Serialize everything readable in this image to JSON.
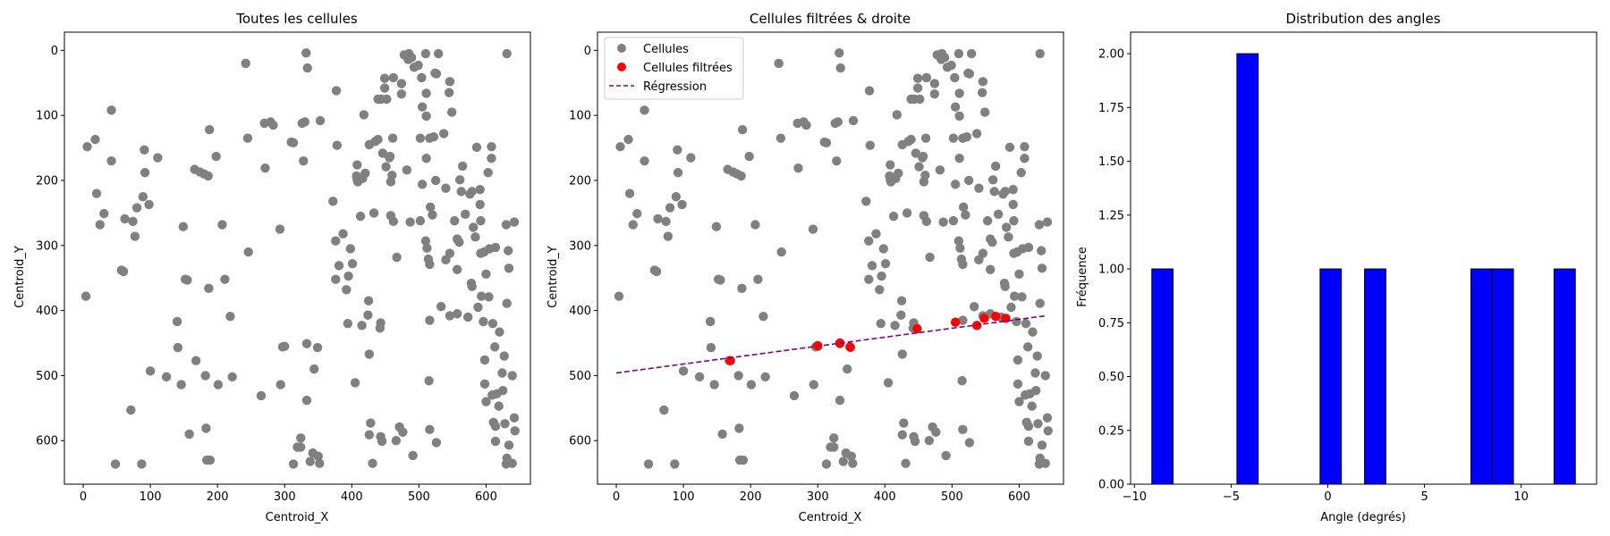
{
  "colors": {
    "cells": "#808080",
    "filtered": "#ff0000",
    "regression": "#800080",
    "bars": "#0000ff",
    "bar_edge": "#000000"
  },
  "chart_data": [
    {
      "type": "scatter",
      "title": "Toutes les cellules",
      "xlabel": "Centroid_X",
      "ylabel": "Centroid_Y",
      "xlim": [
        -28,
        666
      ],
      "ylim": [
        667,
        -28
      ],
      "y_inverted": true,
      "xticks": [
        0,
        100,
        200,
        300,
        400,
        500,
        600
      ],
      "yticks": [
        0,
        100,
        200,
        300,
        400,
        500,
        600
      ],
      "grid": false,
      "series": [
        {
          "points": [
            [
              4,
              378
            ],
            [
              6,
              148
            ],
            [
              18,
              137
            ],
            [
              20,
              220
            ],
            [
              25,
              268
            ],
            [
              31,
              251
            ],
            [
              42,
              92
            ],
            [
              42,
              170
            ],
            [
              48,
              636
            ],
            [
              57,
              338
            ],
            [
              60,
              340
            ],
            [
              62,
              259
            ],
            [
              71,
              553
            ],
            [
              74,
              263
            ],
            [
              77,
              286
            ],
            [
              80,
              242
            ],
            [
              87,
              636
            ],
            [
              89,
              225
            ],
            [
              91,
              153
            ],
            [
              92,
              188
            ],
            [
              98,
              237
            ],
            [
              100,
              493
            ],
            [
              111,
              165
            ],
            [
              124,
              502
            ],
            [
              140,
              417
            ],
            [
              141,
              457
            ],
            [
              146,
              514
            ],
            [
              149,
              271
            ],
            [
              152,
              352
            ],
            [
              155,
              353
            ],
            [
              158,
              590
            ],
            [
              166,
              183
            ],
            [
              168,
              477
            ],
            [
              174,
              187
            ],
            [
              180,
              190
            ],
            [
              182,
              500
            ],
            [
              183,
              581
            ],
            [
              184,
              630
            ],
            [
              186,
              193
            ],
            [
              187,
              366
            ],
            [
              188,
              122
            ],
            [
              189,
              630
            ],
            [
              198,
              163
            ],
            [
              201,
              514
            ],
            [
              207,
              268
            ],
            [
              211,
              352
            ],
            [
              219,
              409
            ],
            [
              222,
              502
            ],
            [
              242,
              20
            ],
            [
              245,
              135
            ],
            [
              246,
              310
            ],
            [
              265,
              531
            ],
            [
              270,
              112
            ],
            [
              271,
              181
            ],
            [
              279,
              110
            ],
            [
              283,
              115
            ],
            [
              293,
              275
            ],
            [
              294,
              514
            ],
            [
              297,
              456
            ],
            [
              300,
              455
            ],
            [
              310,
              141
            ],
            [
              313,
              636
            ],
            [
              313,
              142
            ],
            [
              319,
              610
            ],
            [
              324,
              596
            ],
            [
              324,
              610
            ],
            [
              326,
              112
            ],
            [
              328,
              170
            ],
            [
              330,
              110
            ],
            [
              332,
              4
            ],
            [
              333,
              451
            ],
            [
              333,
              538
            ],
            [
              334,
              27
            ],
            [
              338,
              632
            ],
            [
              342,
              619
            ],
            [
              344,
              490
            ],
            [
              349,
              457
            ],
            [
              350,
              624
            ],
            [
              352,
              635
            ],
            [
              353,
              108
            ],
            [
              372,
              232
            ],
            [
              376,
              293
            ],
            [
              376,
              352
            ],
            [
              377,
              62
            ],
            [
              378,
              146
            ],
            [
              381,
              331
            ],
            [
              387,
              282
            ],
            [
              392,
              368
            ],
            [
              394,
              420
            ],
            [
              395,
              347
            ],
            [
              398,
              305
            ],
            [
              401,
              328
            ],
            [
              405,
              511
            ],
            [
              407,
              193
            ],
            [
              408,
              176
            ],
            [
              408,
              199
            ],
            [
              409,
              202
            ],
            [
              413,
              255
            ],
            [
              415,
              423
            ],
            [
              416,
              197
            ],
            [
              418,
              99
            ],
            [
              420,
              189
            ],
            [
              424,
              407
            ],
            [
              425,
              385
            ],
            [
              426,
              591
            ],
            [
              426,
              467
            ],
            [
              426,
              145
            ],
            [
              428,
              573
            ],
            [
              431,
              635
            ],
            [
              433,
              250
            ],
            [
              435,
              140
            ],
            [
              439,
              137
            ],
            [
              439,
              75
            ],
            [
              442,
              427
            ],
            [
              443,
              594
            ],
            [
              443,
              419
            ],
            [
              444,
              75
            ],
            [
              445,
              601
            ],
            [
              446,
              158
            ],
            [
              449,
              58
            ],
            [
              449,
              43
            ],
            [
              451,
              179
            ],
            [
              452,
              75
            ],
            [
              456,
              165
            ],
            [
              457,
              163
            ],
            [
              458,
              254
            ],
            [
              458,
              202
            ],
            [
              460,
              192
            ],
            [
              461,
              135
            ],
            [
              462,
              263
            ],
            [
              462,
              42
            ],
            [
              466,
              600
            ],
            [
              467,
              318
            ],
            [
              471,
              579
            ],
            [
              474,
              67
            ],
            [
              474,
              51
            ],
            [
              476,
              587
            ],
            [
              478,
              7
            ],
            [
              482,
              184
            ],
            [
              484,
              14
            ],
            [
              485,
              5
            ],
            [
              487,
              264
            ],
            [
              489,
              11
            ],
            [
              491,
              623
            ],
            [
              493,
              26
            ],
            [
              499,
              23
            ],
            [
              502,
              262
            ],
            [
              502,
              135
            ],
            [
              504,
              42
            ],
            [
              505,
              206
            ],
            [
              505,
              87
            ],
            [
              510,
              293
            ],
            [
              510,
              5
            ],
            [
              511,
              66
            ],
            [
              511,
              101
            ],
            [
              511,
              166
            ],
            [
              512,
              304
            ],
            [
              514,
              321
            ],
            [
              515,
              508
            ],
            [
              516,
              583
            ],
            [
              516,
              329
            ],
            [
              516,
              415
            ],
            [
              516,
              135
            ],
            [
              517,
              241
            ],
            [
              520,
              253
            ],
            [
              522,
              133
            ],
            [
              524,
              35
            ],
            [
              525,
              200
            ],
            [
              526,
              603
            ],
            [
              526,
              36
            ],
            [
              529,
              5
            ],
            [
              533,
              394
            ],
            [
              537,
              128
            ],
            [
              540,
              212
            ],
            [
              540,
              322
            ],
            [
              545,
              65
            ],
            [
              546,
              408
            ],
            [
              546,
              312
            ],
            [
              546,
              48
            ],
            [
              549,
              95
            ],
            [
              553,
              262
            ],
            [
              557,
              337
            ],
            [
              557,
              405
            ],
            [
              557,
              290
            ],
            [
              560,
              295
            ],
            [
              561,
              199
            ],
            [
              563,
              217
            ],
            [
              565,
              178
            ],
            [
              569,
              252
            ],
            [
              573,
              410
            ],
            [
              576,
              221
            ],
            [
              578,
              358
            ],
            [
              579,
              217
            ],
            [
              579,
              363
            ],
            [
              581,
              272
            ],
            [
              584,
              287
            ],
            [
              586,
              149
            ],
            [
              588,
              395
            ],
            [
              591,
              237
            ],
            [
              591,
              214
            ],
            [
              592,
              262
            ],
            [
              592,
              312
            ],
            [
              593,
              378
            ],
            [
              596,
              417
            ],
            [
              597,
              310
            ],
            [
              598,
              513
            ],
            [
              598,
              476
            ],
            [
              600,
              540
            ],
            [
              600,
              344
            ],
            [
              603,
              188
            ],
            [
              604,
              379
            ],
            [
              605,
              305
            ],
            [
              608,
              148
            ],
            [
              608,
              166
            ],
            [
              609,
              530
            ],
            [
              610,
              420
            ],
            [
              611,
              572
            ],
            [
              613,
              456
            ],
            [
              614,
              303
            ],
            [
              614,
              601
            ],
            [
              614,
              578
            ],
            [
              616,
              528
            ],
            [
              619,
              547
            ],
            [
              620,
              433
            ],
            [
              624,
              496
            ],
            [
              625,
              523
            ],
            [
              627,
              470
            ],
            [
              628,
              574
            ],
            [
              630,
              268
            ],
            [
              630,
              636
            ],
            [
              631,
              627
            ],
            [
              631,
              5
            ],
            [
              631,
              389
            ],
            [
              633,
              308
            ],
            [
              634,
              335
            ],
            [
              634,
              607
            ],
            [
              639,
              500
            ],
            [
              639,
              635
            ],
            [
              642,
              264
            ],
            [
              642,
              565
            ],
            [
              643,
              585
            ]
          ]
        }
      ]
    },
    {
      "type": "scatter",
      "title": "Cellules filtrées & droite",
      "xlabel": "Centroid_X",
      "ylabel": "Centroid_Y",
      "xlim": [
        -28,
        666
      ],
      "ylim": [
        667,
        -28
      ],
      "y_inverted": true,
      "xticks": [
        0,
        100,
        200,
        300,
        400,
        500,
        600
      ],
      "yticks": [
        0,
        100,
        200,
        300,
        400,
        500,
        600
      ],
      "grid": false,
      "legend": {
        "position": "top-left",
        "entries": [
          "Cellules",
          "Cellules filtrées",
          "Régression"
        ]
      },
      "series": [
        {
          "name": "Cellules",
          "same_points_as_panel": 0
        },
        {
          "name": "Cellules filtrées",
          "points": [
            [
              170,
              477
            ],
            [
              300,
              454
            ],
            [
              333,
              450
            ],
            [
              348,
              456
            ],
            [
              448,
              428
            ],
            [
              505,
              418
            ],
            [
              537,
              423
            ],
            [
              548,
              412
            ],
            [
              565,
              409
            ],
            [
              580,
              412
            ]
          ]
        },
        {
          "name": "Régression",
          "line": [
            [
              0,
              496
            ],
            [
              640,
              408
            ]
          ]
        }
      ]
    },
    {
      "type": "bar",
      "title": "Distribution des angles",
      "xlabel": "Angle (degrés)",
      "ylabel": "Fréquence",
      "xlim": [
        -10.2,
        13.9
      ],
      "ylim": [
        0,
        2.1
      ],
      "xticks": [
        -10,
        -5,
        0,
        5,
        10
      ],
      "yticks": [
        0.0,
        0.25,
        0.5,
        0.75,
        1.0,
        1.25,
        1.5,
        1.75,
        2.0
      ],
      "grid": false,
      "bins": [
        {
          "from": -9.1,
          "to": -8.0,
          "count": 1
        },
        {
          "from": -4.7,
          "to": -3.6,
          "count": 2
        },
        {
          "from": -0.4,
          "to": 0.7,
          "count": 1
        },
        {
          "from": 1.9,
          "to": 3.0,
          "count": 1
        },
        {
          "from": 7.4,
          "to": 8.5,
          "count": 1
        },
        {
          "from": 8.5,
          "to": 9.6,
          "count": 1
        },
        {
          "from": 11.7,
          "to": 12.8,
          "count": 1
        }
      ]
    }
  ]
}
